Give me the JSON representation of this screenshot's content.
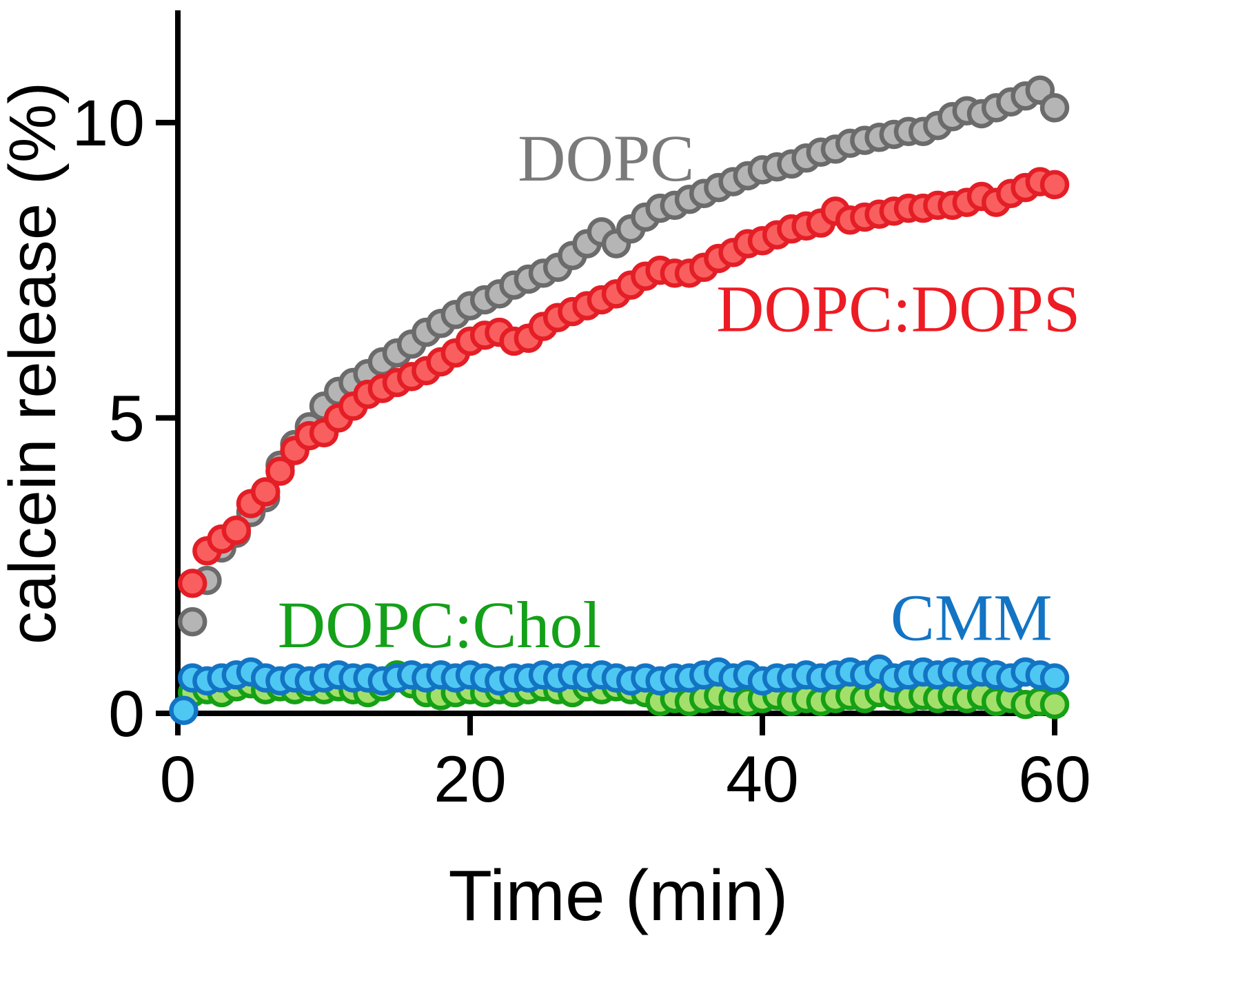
{
  "chart_data": {
    "type": "scatter",
    "title": "",
    "xlabel": "Time (min)",
    "ylabel": "calcein release (%)",
    "xlim": [
      0,
      60
    ],
    "ylim": [
      0,
      11.9
    ],
    "x_ticks": [
      0,
      20,
      40,
      60
    ],
    "y_ticks": [
      0,
      5,
      10
    ],
    "grid": false,
    "legend_position": "inline-annotations",
    "marker_radius": 18,
    "marker_stroke_width": 6.5,
    "axis_color": "#000000",
    "series": [
      {
        "name": "DOPC",
        "marker_fill": "#b5b5b5",
        "marker_stroke": "#6b6b6b",
        "x": [
          1,
          2,
          3,
          4,
          5,
          6,
          7,
          8,
          9,
          10,
          11,
          12,
          13,
          14,
          15,
          16,
          17,
          18,
          19,
          20,
          21,
          22,
          23,
          24,
          25,
          26,
          27,
          28,
          29,
          30,
          31,
          32,
          33,
          34,
          35,
          36,
          37,
          38,
          39,
          40,
          41,
          42,
          43,
          44,
          45,
          46,
          47,
          48,
          49,
          50,
          51,
          52,
          53,
          54,
          55,
          56,
          57,
          58,
          59,
          60
        ],
        "y": [
          1.55,
          2.25,
          2.8,
          3.05,
          3.4,
          3.65,
          4.2,
          4.55,
          4.85,
          5.2,
          5.45,
          5.6,
          5.75,
          5.95,
          6.1,
          6.25,
          6.45,
          6.6,
          6.75,
          6.9,
          7.0,
          7.1,
          7.25,
          7.35,
          7.45,
          7.55,
          7.75,
          7.95,
          8.15,
          7.95,
          8.2,
          8.4,
          8.55,
          8.6,
          8.7,
          8.8,
          8.9,
          9.0,
          9.1,
          9.2,
          9.25,
          9.3,
          9.4,
          9.5,
          9.55,
          9.65,
          9.7,
          9.75,
          9.8,
          9.85,
          9.85,
          9.95,
          10.1,
          10.2,
          10.15,
          10.25,
          10.35,
          10.45,
          10.55,
          10.25
        ]
      },
      {
        "name": "DOPC:DOPS",
        "marker_fill": "#fa5f5f",
        "marker_stroke": "#e41e26",
        "x": [
          1,
          2,
          3,
          4,
          5,
          6,
          7,
          8,
          9,
          10,
          11,
          12,
          13,
          14,
          15,
          16,
          17,
          18,
          19,
          20,
          21,
          22,
          23,
          24,
          25,
          26,
          27,
          28,
          29,
          30,
          31,
          32,
          33,
          34,
          35,
          36,
          37,
          38,
          39,
          40,
          41,
          42,
          43,
          44,
          45,
          46,
          47,
          48,
          49,
          50,
          51,
          52,
          53,
          54,
          55,
          56,
          57,
          58,
          59,
          60
        ],
        "y": [
          2.2,
          2.75,
          2.95,
          3.1,
          3.55,
          3.75,
          4.1,
          4.45,
          4.7,
          4.75,
          5.0,
          5.2,
          5.4,
          5.5,
          5.6,
          5.7,
          5.8,
          5.95,
          6.1,
          6.3,
          6.4,
          6.45,
          6.3,
          6.35,
          6.55,
          6.7,
          6.8,
          6.9,
          7.0,
          7.1,
          7.25,
          7.4,
          7.5,
          7.45,
          7.45,
          7.55,
          7.7,
          7.8,
          7.95,
          8.0,
          8.1,
          8.2,
          8.25,
          8.3,
          8.5,
          8.35,
          8.4,
          8.45,
          8.5,
          8.55,
          8.55,
          8.6,
          8.6,
          8.65,
          8.75,
          8.65,
          8.8,
          8.9,
          9.0,
          8.95
        ]
      },
      {
        "name": "DOPC:Chol",
        "marker_fill": "#a3e06b",
        "marker_stroke": "#16a016",
        "x": [
          1,
          2,
          3,
          4,
          5,
          6,
          7,
          8,
          9,
          10,
          11,
          12,
          13,
          14,
          15,
          16,
          17,
          18,
          19,
          20,
          21,
          22,
          23,
          24,
          25,
          26,
          27,
          28,
          29,
          30,
          31,
          32,
          33,
          34,
          35,
          36,
          37,
          38,
          39,
          40,
          41,
          42,
          43,
          44,
          45,
          46,
          47,
          48,
          49,
          50,
          51,
          52,
          53,
          54,
          55,
          56,
          57,
          58,
          59,
          60
        ],
        "y": [
          0.35,
          0.4,
          0.35,
          0.45,
          0.5,
          0.4,
          0.45,
          0.4,
          0.45,
          0.4,
          0.45,
          0.4,
          0.35,
          0.45,
          0.65,
          0.5,
          0.35,
          0.3,
          0.35,
          0.4,
          0.35,
          0.4,
          0.35,
          0.4,
          0.45,
          0.4,
          0.35,
          0.45,
          0.4,
          0.45,
          0.4,
          0.35,
          0.2,
          0.25,
          0.2,
          0.25,
          0.3,
          0.25,
          0.2,
          0.25,
          0.3,
          0.2,
          0.25,
          0.2,
          0.25,
          0.3,
          0.25,
          0.35,
          0.3,
          0.25,
          0.3,
          0.25,
          0.3,
          0.25,
          0.3,
          0.2,
          0.25,
          0.15,
          0.2,
          0.15
        ]
      },
      {
        "name": "CMM",
        "marker_fill": "#4fc7f3",
        "marker_stroke": "#1374c4",
        "x": [
          0.4,
          1,
          2,
          3,
          4,
          5,
          6,
          7,
          8,
          9,
          10,
          11,
          12,
          13,
          14,
          15,
          16,
          17,
          18,
          19,
          20,
          21,
          22,
          23,
          24,
          25,
          26,
          27,
          28,
          29,
          30,
          31,
          32,
          33,
          34,
          35,
          36,
          37,
          38,
          39,
          40,
          41,
          42,
          43,
          44,
          45,
          46,
          47,
          48,
          49,
          50,
          51,
          52,
          53,
          54,
          55,
          56,
          57,
          58,
          59,
          60
        ],
        "y": [
          0.05,
          0.6,
          0.55,
          0.6,
          0.65,
          0.7,
          0.6,
          0.55,
          0.6,
          0.55,
          0.6,
          0.65,
          0.6,
          0.6,
          0.55,
          0.6,
          0.65,
          0.6,
          0.65,
          0.6,
          0.65,
          0.6,
          0.55,
          0.6,
          0.6,
          0.65,
          0.6,
          0.65,
          0.6,
          0.65,
          0.6,
          0.55,
          0.6,
          0.55,
          0.6,
          0.6,
          0.65,
          0.7,
          0.6,
          0.65,
          0.55,
          0.6,
          0.6,
          0.65,
          0.6,
          0.65,
          0.7,
          0.65,
          0.75,
          0.6,
          0.65,
          0.7,
          0.65,
          0.7,
          0.65,
          0.7,
          0.65,
          0.6,
          0.7,
          0.65,
          0.6
        ]
      }
    ],
    "annotations": [
      {
        "text": "DOPC",
        "x": 29.3,
        "y": 9.4,
        "color": "#7a7a7a"
      },
      {
        "text": "DOPC:DOPS",
        "x": 49.3,
        "y": 6.85,
        "color": "#ed1c24"
      },
      {
        "text": "DOPC:Chol",
        "x": 17.9,
        "y": 1.5,
        "color": "#14a019"
      },
      {
        "text": "CMM",
        "x": 54.3,
        "y": 1.62,
        "color": "#1374c4"
      }
    ]
  }
}
